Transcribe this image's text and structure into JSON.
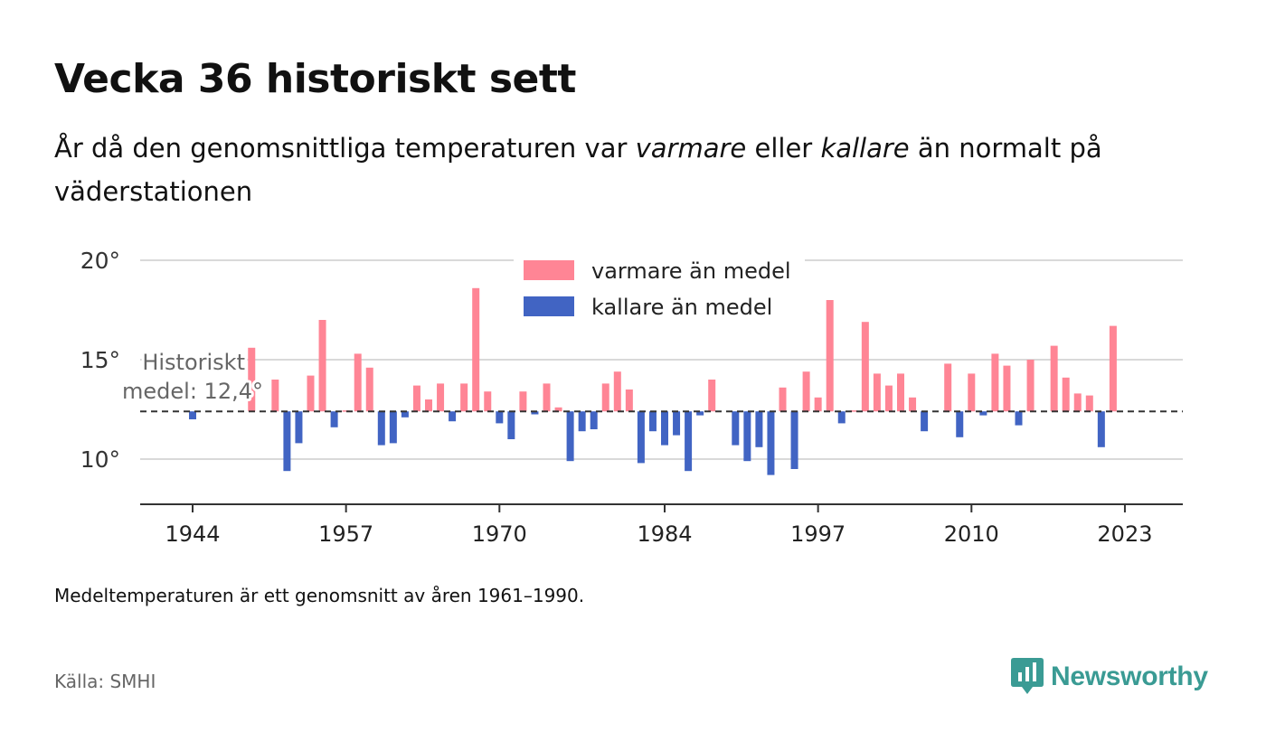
{
  "header": {
    "title": "Vecka 36 historiskt sett",
    "subtitle_before": "År då den genomsnittliga temperaturen var ",
    "subtitle_warm": "varmare",
    "subtitle_mid": " eller ",
    "subtitle_cold": "kallare",
    "subtitle_after": " än normalt på väderstationen"
  },
  "footer": {
    "note": "Medeltemperaturen är ett genomsnitt av åren 1961–1990.",
    "source": "Källa: SMHI",
    "brand": "Newsworthy"
  },
  "colors": {
    "warm": "#ff8595",
    "cold": "#4164c3",
    "brand": "#3a9b94",
    "grid": "#d9d9d9",
    "axis": "#333333"
  },
  "chart_data": {
    "type": "bar",
    "ylim": [
      7.8,
      20
    ],
    "yticks": [
      10,
      15,
      20
    ],
    "ytick_labels": [
      "10°",
      "15°",
      "20°"
    ],
    "xticks": [
      1944,
      1957,
      1970,
      1984,
      1997,
      2010,
      2023
    ],
    "baseline": 12.4,
    "baseline_label_line1": "Historiskt",
    "baseline_label_line2": "medel: 12,4°",
    "legend": {
      "warm": "varmare än medel",
      "cold": "kallare än medel",
      "placement": "top-center"
    },
    "grid": true,
    "years": [
      1944,
      1945,
      1946,
      1947,
      1948,
      1949,
      1950,
      1951,
      1952,
      1953,
      1954,
      1955,
      1956,
      1957,
      1958,
      1959,
      1960,
      1961,
      1962,
      1963,
      1964,
      1965,
      1966,
      1967,
      1968,
      1969,
      1970,
      1971,
      1972,
      1973,
      1974,
      1975,
      1976,
      1977,
      1978,
      1979,
      1980,
      1981,
      1982,
      1983,
      1984,
      1985,
      1986,
      1987,
      1988,
      1989,
      1990,
      1991,
      1992,
      1993,
      1994,
      1995,
      1996,
      1997,
      1998,
      1999,
      2000,
      2001,
      2002,
      2003,
      2004,
      2005,
      2006,
      2007,
      2008,
      2009,
      2010,
      2011,
      2012,
      2013,
      2014,
      2015,
      2016,
      2017,
      2018,
      2019,
      2020,
      2021,
      2022,
      2023
    ],
    "values": [
      12.0,
      null,
      null,
      null,
      null,
      15.6,
      null,
      14.0,
      9.4,
      10.8,
      14.2,
      17.0,
      11.6,
      12.45,
      15.3,
      14.6,
      10.7,
      10.8,
      12.1,
      13.7,
      13.0,
      13.8,
      11.9,
      13.8,
      18.6,
      13.4,
      11.8,
      11.0,
      13.4,
      12.25,
      13.8,
      12.6,
      9.9,
      11.4,
      11.5,
      13.8,
      14.4,
      13.5,
      9.8,
      11.4,
      10.7,
      11.2,
      9.4,
      12.2,
      14.0,
      null,
      10.7,
      9.9,
      10.6,
      9.2,
      13.6,
      9.5,
      14.4,
      13.1,
      18.0,
      11.8,
      12.45,
      16.9,
      14.3,
      13.7,
      14.3,
      13.1,
      11.4,
      null,
      14.8,
      11.1,
      14.3,
      12.2,
      15.3,
      14.7,
      11.7,
      15.0,
      null,
      15.7,
      14.1,
      13.3,
      13.2,
      10.6,
      16.7,
      null
    ]
  }
}
